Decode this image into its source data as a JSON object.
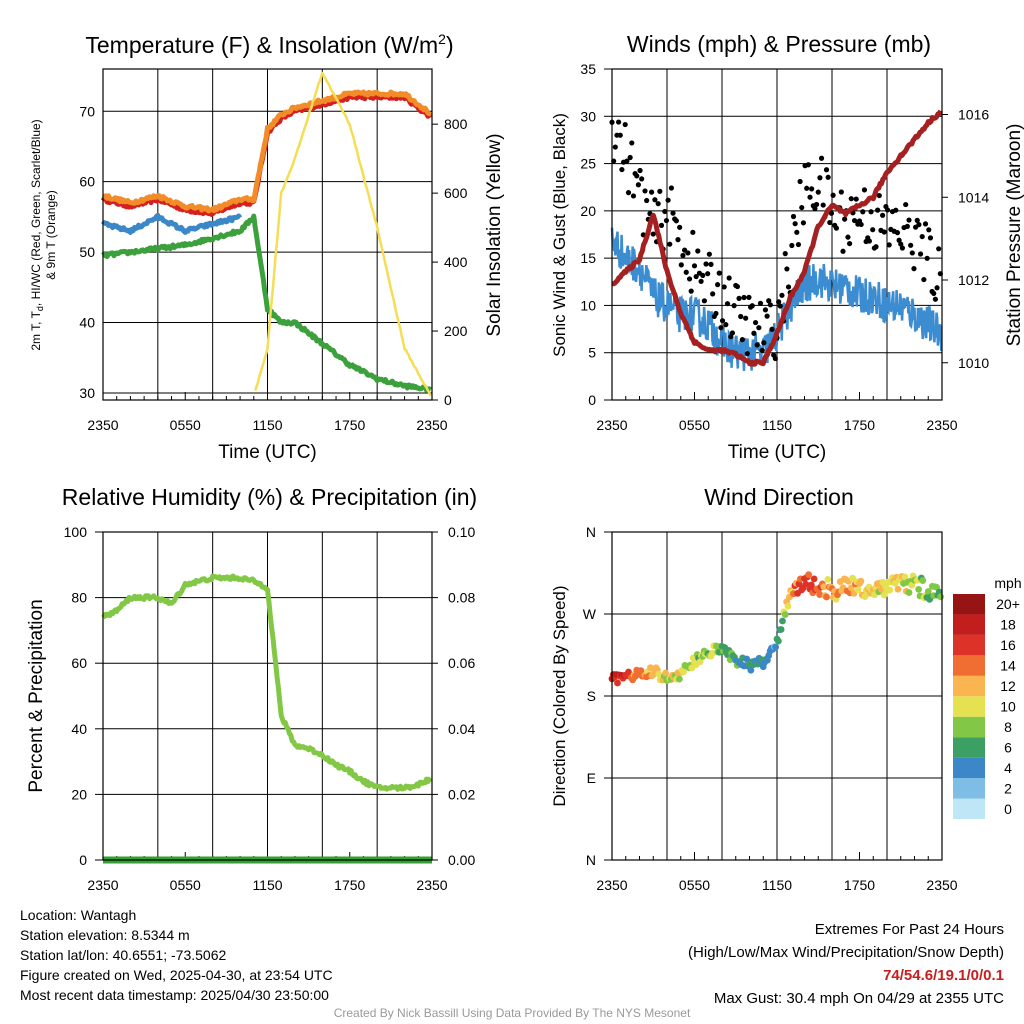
{
  "chart_data": [
    {
      "type": "line",
      "title": "Temperature (F) & Insolation (W/m²)",
      "xlabel": "Time (UTC)",
      "ylabel": "2m T, Td, HI/WC (Red, Green, Scarlet/Blue) & 9m T (Orange)",
      "ylabel2": "Solar Insolation (Yellow)",
      "x_ticks": [
        "2350",
        "0550",
        "1150",
        "1750",
        "2350"
      ],
      "y_ticks": [
        30,
        40,
        50,
        60,
        70
      ],
      "y2_ticks": [
        0,
        200,
        400,
        600,
        800
      ],
      "ylim": [
        29,
        76
      ],
      "ylim2": [
        0,
        960
      ],
      "x_hours": [
        0,
        2,
        4,
        6,
        8,
        10,
        11,
        12,
        13,
        14,
        16,
        18,
        20,
        22,
        24
      ],
      "series": [
        {
          "color": "#d42020",
          "values": [
            57.5,
            56.5,
            57.5,
            56,
            55.5,
            57,
            57,
            67,
            69,
            70,
            71,
            72,
            72,
            72,
            69
          ]
        },
        {
          "color": "#f28c28",
          "values": [
            58,
            57,
            58,
            56.5,
            56,
            57.5,
            57.5,
            67.5,
            69.5,
            70.5,
            71.5,
            72.5,
            72.5,
            72.5,
            69.5
          ]
        },
        {
          "color": "#3c87c8",
          "values": [
            54,
            53,
            55,
            53,
            54,
            55,
            null,
            null,
            null,
            null,
            null,
            null,
            null,
            null,
            null
          ]
        },
        {
          "color": "#3ca03c",
          "values": [
            49.5,
            50,
            50.5,
            51,
            52,
            53,
            55,
            42,
            40,
            40,
            37,
            34,
            32,
            31,
            30.5
          ]
        },
        {
          "color": "#f5dd55",
          "values": [
            null,
            null,
            null,
            null,
            null,
            null,
            10,
            150,
            600,
            700,
            950,
            800,
            500,
            150,
            5
          ]
        }
      ]
    },
    {
      "type": "scatter",
      "title": "Winds (mph) & Pressure (mb)",
      "xlabel": "Time (UTC)",
      "ylabel": "Sonic Wind & Gust (Blue, Black)",
      "ylabel2": "Station Pressure (Maroon)",
      "x_ticks": [
        "2350",
        "0550",
        "1150",
        "1750",
        "2350"
      ],
      "y_ticks": [
        0,
        5,
        10,
        15,
        20,
        25,
        30,
        35
      ],
      "y2_ticks": [
        1010,
        1012,
        1014,
        1016
      ],
      "ylim": [
        0,
        35
      ],
      "ylim2": [
        1009.1,
        1017.1
      ],
      "x_hours": [
        0,
        1,
        2,
        3,
        4,
        5,
        6,
        7,
        8,
        9,
        10,
        11,
        12,
        13,
        14,
        15,
        16,
        17,
        18,
        19,
        20,
        21,
        22,
        23,
        24
      ],
      "series": [
        {
          "color": "#3c8cd2",
          "values": [
            17,
            15,
            14,
            11,
            10,
            9,
            9,
            8,
            6,
            5,
            5,
            5,
            7,
            10,
            12,
            13,
            12,
            12,
            11,
            11,
            10,
            10,
            9,
            8,
            7
          ]
        },
        {
          "color": "#000000",
          "values": [
            29,
            26,
            22,
            18,
            20,
            17,
            14,
            12,
            11,
            9,
            8,
            7,
            8,
            15,
            22,
            23,
            20,
            19,
            20,
            19,
            18,
            18,
            17,
            15,
            12
          ]
        },
        {
          "color": "#a52020",
          "values": [
            1011.9,
            1012.2,
            1012.5,
            1013.6,
            1012.2,
            1011.2,
            1010.5,
            1010.3,
            1010.3,
            1010.2,
            1010.0,
            1010.0,
            1010.7,
            1011.6,
            1012.2,
            1013.3,
            1013.8,
            1013.6,
            1013.8,
            1014.0,
            1014.6,
            1015.0,
            1015.4,
            1015.8,
            1016.1
          ]
        }
      ]
    },
    {
      "type": "line",
      "title": "Relative Humidity (%) & Precipitation (in)",
      "ylabel": "Percent & Precipitation",
      "x_ticks": [
        "2350",
        "0550",
        "1150",
        "1750",
        "2350"
      ],
      "y_ticks": [
        0,
        20,
        40,
        60,
        80,
        100
      ],
      "y2_ticks": [
        "0.00",
        "0.02",
        "0.04",
        "0.06",
        "0.08",
        "0.10"
      ],
      "ylim": [
        0,
        100
      ],
      "ylim2": [
        0,
        0.1
      ],
      "x_hours": [
        0,
        1,
        2,
        3,
        4,
        5,
        6,
        7,
        8,
        9,
        10,
        11,
        12,
        13,
        14,
        15,
        16,
        17,
        18,
        19,
        20,
        21,
        22,
        23,
        24
      ],
      "series": [
        {
          "color": "#82c846",
          "values": [
            74,
            76,
            80,
            80,
            80,
            78,
            84,
            85,
            86,
            86,
            86,
            85,
            83,
            44,
            35,
            34,
            32,
            29,
            27,
            24,
            22,
            22,
            22,
            23,
            25
          ]
        },
        {
          "color": "#32a032",
          "values": [
            0,
            0,
            0,
            0,
            0,
            0,
            0,
            0,
            0,
            0,
            0,
            0,
            0,
            0,
            0,
            0,
            0,
            0,
            0,
            0,
            0,
            0,
            0,
            0,
            0
          ]
        }
      ]
    },
    {
      "type": "scatter",
      "title": "Wind Direction",
      "ylabel": "Direction (Colored By Speed)",
      "x_ticks": [
        "2350",
        "0550",
        "1150",
        "1750",
        "2350"
      ],
      "y_ticks": [
        "N",
        "E",
        "S",
        "W",
        "N"
      ],
      "ylim": [
        0,
        360
      ],
      "x_hours": [
        0,
        1,
        2,
        3,
        4,
        5,
        6,
        7,
        8,
        9,
        10,
        11,
        12,
        13,
        14,
        15,
        16,
        17,
        18,
        19,
        20,
        21,
        22,
        23,
        24
      ],
      "values": [
        198,
        202,
        203,
        208,
        199,
        205,
        218,
        229,
        231,
        220,
        214,
        216,
        238,
        295,
        305,
        300,
        296,
        298,
        300,
        298,
        300,
        304,
        302,
        296,
        290
      ],
      "speeds": [
        17,
        16,
        14,
        11,
        10,
        10,
        8,
        8,
        8,
        6,
        5,
        5,
        4,
        12,
        16,
        14,
        12,
        13,
        12,
        11,
        10,
        10,
        9,
        8,
        7
      ],
      "colorbar": {
        "label": "mph",
        "ticks": [
          "0",
          "2",
          "4",
          "6",
          "8",
          "10",
          "12",
          "14",
          "16",
          "18",
          "20+"
        ],
        "colors": [
          "#bfe6f6",
          "#7dbde6",
          "#3c87c8",
          "#3ca064",
          "#82c846",
          "#e6e150",
          "#fab450",
          "#f06e32",
          "#dc3228",
          "#c31e1e",
          "#961414"
        ]
      }
    }
  ],
  "info": {
    "location": "Location: Wantagh",
    "elevation": "Station elevation: 8.5344 m",
    "latlon": "Station lat/lon: 40.6551; -73.5062",
    "created": "Figure created on Wed, 2025-04-30, at 23:54 UTC",
    "recent": "Most recent data timestamp: 2025/04/30 23:50:00"
  },
  "extremes": {
    "title": "Extremes For Past 24 Hours",
    "subtitle": "(High/Low/Max Wind/Precipitation/Snow Depth)",
    "values": "74/54.6/19.1/0/0.1",
    "gust": "Max Gust: 30.4 mph On 04/29 at 2355 UTC"
  },
  "credit": "Created By Nick Bassill Using Data Provided By The NYS Mesonet",
  "titles": {
    "p1_title_main": "Temperature (F) & Insolation (W/m",
    "p1_title_sup": "2",
    "p1_title_end": ")",
    "p1_ylabel_a": "2m T, T",
    "p1_ylabel_sub": "d",
    "p1_ylabel_b": ", HI/WC (Red, Green, Scarlet/Blue)",
    "p1_ylabel_c": "& 9m T (Orange)"
  }
}
